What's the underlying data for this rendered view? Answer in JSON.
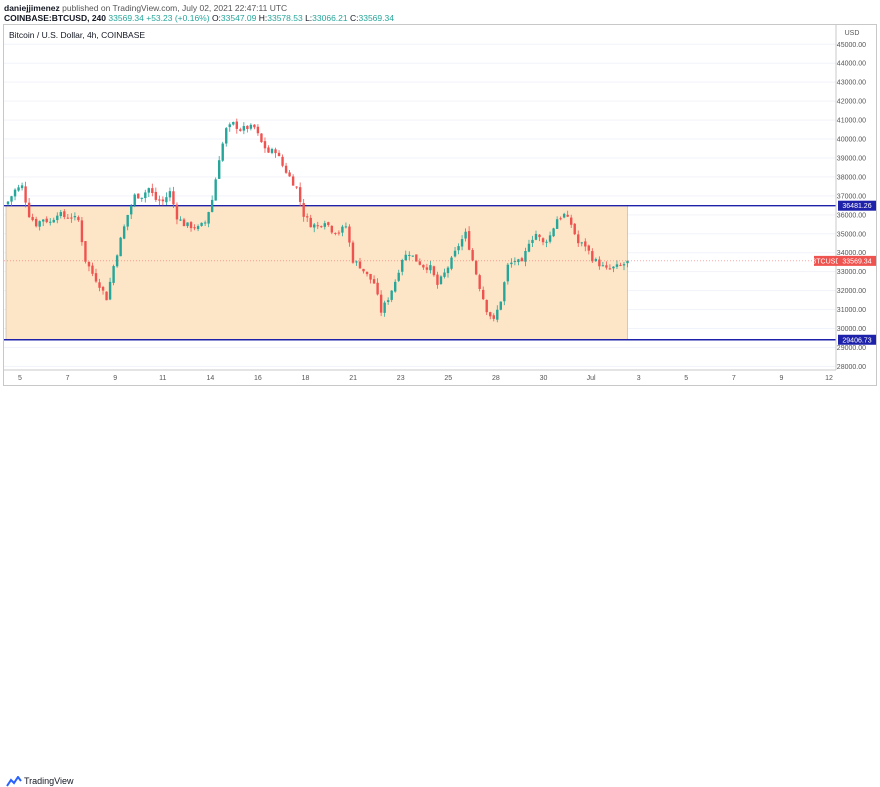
{
  "header": {
    "author": "daniejjimenez",
    "published_text": "published on TradingView.com, July 02, 2021 22:47:11 UTC",
    "symbol_line": "COINBASE:BTCUSD, 240",
    "price": "33569.34",
    "change": "+53.23 (+0.16%)",
    "o_label": "O:",
    "o_value": "33547.09",
    "h_label": "H:",
    "h_value": "33578.53",
    "l_label": "L:",
    "l_value": "33066.21",
    "c_label": "C:",
    "c_value": "33569.34"
  },
  "chart_title": "Bitcoin / U.S. Dollar, 4h, COINBASE",
  "footer": {
    "brand": "TradingView"
  },
  "colors": {
    "up": "#26a69a",
    "down": "#ef5350",
    "level_line": "#1e22aa",
    "box_fill": "#fde6c8",
    "price_tag": "#ef5350"
  },
  "chart_data": {
    "type": "candlestick",
    "currency_label": "USD",
    "ylim": [
      27600,
      45700
    ],
    "y_ticks": [
      28000,
      29000,
      30000,
      31000,
      32000,
      33000,
      34000,
      35000,
      36000,
      37000,
      38000,
      39000,
      40000,
      41000,
      42000,
      43000,
      44000,
      45000
    ],
    "y_tick_labels": [
      "28000.00",
      "29000.00",
      "30000.00",
      "31000.00",
      "32000.00",
      "33000.00",
      "34000.00",
      "35000.00",
      "36000.00",
      "37000.00",
      "38000.00",
      "39000.00",
      "40000.00",
      "41000.00",
      "42000.00",
      "43000.00",
      "44000.00",
      "45000.00"
    ],
    "x_ticks": [
      "5",
      "7",
      "9",
      "11",
      "14",
      "16",
      "18",
      "21",
      "23",
      "25",
      "28",
      "30",
      "Jul",
      "3",
      "5",
      "7",
      "9",
      "12"
    ],
    "levels": [
      {
        "name": "resistance",
        "value": 36481.26,
        "label": "36481.26"
      },
      {
        "name": "support",
        "value": 29406.73,
        "label": "29406.73"
      }
    ],
    "last_price": {
      "symbol": "BTCUSD",
      "value": 33569.34,
      "label": "33569.34"
    },
    "range_box": {
      "from_index": 0,
      "to_candle_count": 176,
      "top": 36481.26,
      "bottom": 29406.73
    },
    "anchors": [
      [
        0,
        36700
      ],
      [
        2,
        37300
      ],
      [
        4,
        37500
      ],
      [
        6,
        36000
      ],
      [
        8,
        35500
      ],
      [
        10,
        35800
      ],
      [
        12,
        35600
      ],
      [
        14,
        36100
      ],
      [
        16,
        35900
      ],
      [
        18,
        35900
      ],
      [
        20,
        35700
      ],
      [
        22,
        33600
      ],
      [
        24,
        32900
      ],
      [
        26,
        32300
      ],
      [
        28,
        31600
      ],
      [
        30,
        33300
      ],
      [
        32,
        34700
      ],
      [
        34,
        36000
      ],
      [
        36,
        37000
      ],
      [
        38,
        37000
      ],
      [
        40,
        37400
      ],
      [
        42,
        36800
      ],
      [
        44,
        36700
      ],
      [
        46,
        37200
      ],
      [
        48,
        35900
      ],
      [
        50,
        35500
      ],
      [
        52,
        35400
      ],
      [
        54,
        35300
      ],
      [
        56,
        35600
      ],
      [
        58,
        36800
      ],
      [
        60,
        39000
      ],
      [
        62,
        40500
      ],
      [
        64,
        40800
      ],
      [
        66,
        40500
      ],
      [
        68,
        40600
      ],
      [
        70,
        40600
      ],
      [
        72,
        39800
      ],
      [
        74,
        39300
      ],
      [
        76,
        39400
      ],
      [
        78,
        38600
      ],
      [
        80,
        38000
      ],
      [
        82,
        37400
      ],
      [
        84,
        36000
      ],
      [
        86,
        35500
      ],
      [
        88,
        35400
      ],
      [
        90,
        35700
      ],
      [
        92,
        35200
      ],
      [
        94,
        35100
      ],
      [
        96,
        35400
      ],
      [
        98,
        33600
      ],
      [
        100,
        33300
      ],
      [
        102,
        32800
      ],
      [
        104,
        32400
      ],
      [
        106,
        30900
      ],
      [
        108,
        31600
      ],
      [
        110,
        32500
      ],
      [
        112,
        33700
      ],
      [
        114,
        34000
      ],
      [
        116,
        33600
      ],
      [
        118,
        33300
      ],
      [
        120,
        33200
      ],
      [
        122,
        32300
      ],
      [
        124,
        32900
      ],
      [
        126,
        33600
      ],
      [
        128,
        34400
      ],
      [
        130,
        35000
      ],
      [
        132,
        33600
      ],
      [
        134,
        32200
      ],
      [
        136,
        31000
      ],
      [
        138,
        30400
      ],
      [
        140,
        31500
      ],
      [
        142,
        33300
      ],
      [
        144,
        33600
      ],
      [
        146,
        33400
      ],
      [
        148,
        34600
      ],
      [
        150,
        35000
      ],
      [
        152,
        34500
      ],
      [
        154,
        34900
      ],
      [
        156,
        35800
      ],
      [
        158,
        36000
      ],
      [
        160,
        35500
      ],
      [
        162,
        34500
      ],
      [
        164,
        34400
      ],
      [
        166,
        33700
      ],
      [
        168,
        33400
      ],
      [
        170,
        33100
      ],
      [
        172,
        33200
      ],
      [
        174,
        33300
      ],
      [
        176,
        33500
      ]
    ],
    "candle_count": 176
  }
}
